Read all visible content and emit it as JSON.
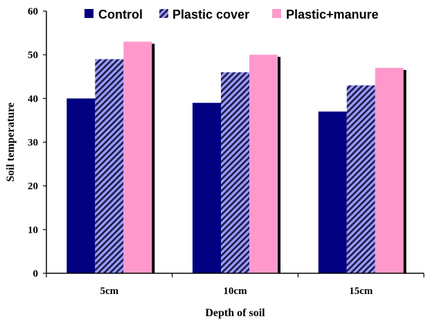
{
  "chart_data": {
    "type": "bar",
    "categories": [
      "5cm",
      "10cm",
      "15cm"
    ],
    "series": [
      {
        "name": "Control",
        "values": [
          40,
          39,
          37
        ],
        "color": "#000080",
        "pattern": "solid"
      },
      {
        "name": "Plastic cover",
        "values": [
          49,
          46,
          43
        ],
        "color": "#9999ff",
        "pattern": "diagonal-stripes"
      },
      {
        "name": "Plastic+manure",
        "values": [
          53,
          50,
          47
        ],
        "color": "#ff99cc",
        "pattern": "solid"
      }
    ],
    "title": "",
    "xlabel": "Depth of soil",
    "ylabel": "Soil temperature",
    "ylim": [
      0,
      60
    ],
    "yticks": [
      "0",
      "10",
      "20",
      "30",
      "40",
      "50",
      "60"
    ],
    "grid": false,
    "legend_position": "top"
  }
}
